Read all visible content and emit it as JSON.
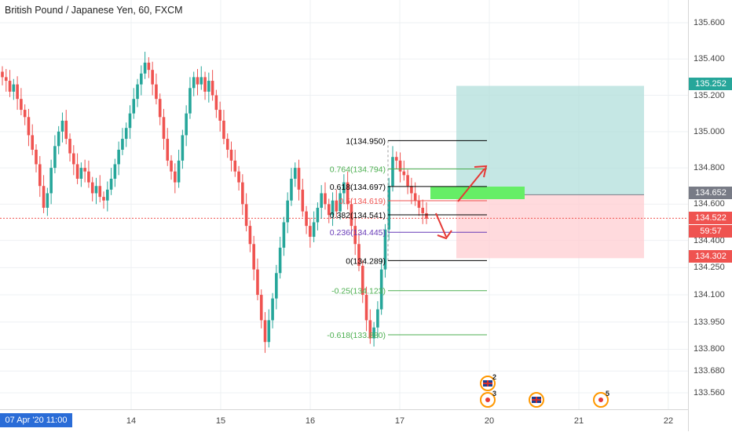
{
  "window": {
    "title": "British Pound / Japanese Yen, 60, FXCM"
  },
  "colors": {
    "up": "#26a69a",
    "down": "#ef5350",
    "grid": "#eef0f3",
    "tp_zone": "#b2dfdb",
    "sl_zone": "#ffcdd2",
    "entry_zone": "#66ee66",
    "arrow": "#e53935",
    "fib_green": "#4caf50",
    "fib_red": "#ef5350",
    "fib_purple": "#673ab7",
    "fib_black": "#000000"
  },
  "price_axis": {
    "ticks": [
      "135.600",
      "135.400",
      "135.200",
      "135.000",
      "134.800",
      "134.600",
      "134.400",
      "134.250",
      "134.100",
      "133.950",
      "133.800",
      "133.680",
      "133.560"
    ],
    "tags": [
      {
        "label": "135.252",
        "color": "#26a69a"
      },
      {
        "label": "134.652",
        "color": "#787b86"
      },
      {
        "label": "134.522",
        "color": "#ef5350"
      },
      {
        "label": "59:57",
        "color": "#ef5350"
      },
      {
        "label": "134.302",
        "color": "#ef5350"
      }
    ]
  },
  "time_axis": {
    "ticks": [
      "14",
      "15",
      "16",
      "17",
      "20",
      "21",
      "22"
    ],
    "current": "07 Apr '20   11:00"
  },
  "chart_data": {
    "type": "candlestick",
    "title": "British Pound / Japanese Yen, 60, FXCM",
    "symbol": "GBPJPY",
    "interval": "60",
    "source": "FXCM",
    "x_ticks": [
      "14",
      "15",
      "16",
      "17",
      "20",
      "21",
      "22"
    ],
    "y_ticks": [
      135.6,
      135.4,
      135.2,
      135.0,
      134.8,
      134.6,
      134.4,
      134.25,
      134.1,
      133.95,
      133.8,
      133.68,
      133.56
    ],
    "ylim": [
      133.52,
      135.72
    ],
    "current_price": 134.522,
    "countdown": "59:57",
    "closes": [
      135.3,
      135.28,
      135.22,
      135.26,
      135.18,
      135.12,
      135.08,
      134.98,
      134.9,
      134.82,
      134.7,
      134.58,
      134.66,
      134.8,
      134.92,
      135.0,
      135.06,
      134.96,
      134.88,
      134.82,
      134.74,
      134.8,
      134.78,
      134.72,
      134.66,
      134.7,
      134.64,
      134.62,
      134.68,
      134.74,
      134.82,
      134.9,
      134.96,
      135.02,
      135.1,
      135.18,
      135.26,
      135.32,
      135.38,
      135.34,
      135.26,
      135.18,
      135.08,
      134.96,
      134.84,
      134.78,
      134.72,
      134.84,
      134.98,
      135.1,
      135.24,
      135.3,
      135.26,
      135.3,
      135.22,
      135.28,
      135.2,
      135.12,
      135.06,
      134.96,
      134.9,
      134.84,
      134.78,
      134.72,
      134.6,
      134.48,
      134.38,
      134.24,
      134.1,
      133.96,
      133.84,
      133.96,
      134.08,
      134.22,
      134.36,
      134.5,
      134.62,
      134.74,
      134.8,
      134.68,
      134.56,
      134.48,
      134.42,
      134.5,
      134.58,
      134.66,
      134.6,
      134.54,
      134.62,
      134.56,
      134.66,
      134.72,
      134.6,
      134.48,
      134.38,
      134.26,
      134.1,
      133.96,
      133.86,
      133.92,
      134.02,
      134.24,
      134.46,
      134.7,
      134.86,
      134.84,
      134.78,
      134.76,
      134.7,
      134.66,
      134.62,
      134.58,
      134.55,
      134.52
    ],
    "fibonacci": {
      "levels": [
        {
          "ratio": "1",
          "price": 134.95,
          "label": "1(134.950)",
          "color": "#000000"
        },
        {
          "ratio": "0.764",
          "price": 134.794,
          "label": "0.764(134.794)",
          "color": "#4caf50"
        },
        {
          "ratio": "0.618",
          "price": 134.697,
          "label": "0.618(134.697)",
          "color": "#000000"
        },
        {
          "ratio": "0.5",
          "price": 134.619,
          "label": "0.5(134.619)",
          "color": "#ef5350"
        },
        {
          "ratio": "0.382",
          "price": 134.541,
          "label": "0.382(134.541)",
          "color": "#000000"
        },
        {
          "ratio": "0.236",
          "price": 134.445,
          "label": "0.236(134.445)",
          "color": "#673ab7"
        },
        {
          "ratio": "0",
          "price": 134.289,
          "label": "0(134.289)",
          "color": "#000000"
        },
        {
          "ratio": "-0.25",
          "price": 134.123,
          "label": "-0.25(134.123)",
          "color": "#4caf50"
        },
        {
          "ratio": "-0.618",
          "price": 133.88,
          "label": "-0.618(133.880)",
          "color": "#4caf50"
        }
      ]
    },
    "position": {
      "entry": 134.652,
      "take_profit": 135.252,
      "stop_loss": 134.302
    },
    "events": [
      {
        "kind": "uk-flag",
        "badge": "2"
      },
      {
        "kind": "dot",
        "badge": "3"
      },
      {
        "kind": "uk-flag",
        "badge": ""
      },
      {
        "kind": "dot",
        "badge": "5"
      }
    ]
  }
}
